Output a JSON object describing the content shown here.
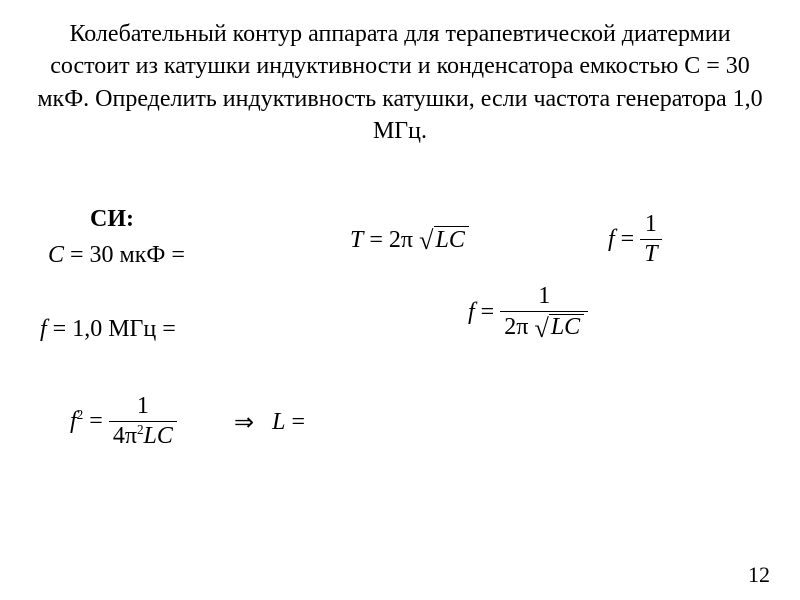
{
  "problem": "Колебательный контур аппарата для терапевтической диатермии состоит из катушки индуктивности и конденсатора емкостью С = 30 мкФ. Определить индуктивность катушки, если частота генератора 1,0 МГц.",
  "si_label": "СИ:",
  "given": {
    "C_lhs_var": "С",
    "C_lhs_eq": " = 30 мкФ = ",
    "f_lhs_var": "f",
    "f_lhs_eq": " = 1,0 МГц = "
  },
  "formulas": {
    "T": {
      "lhs": "T",
      "eq": " = 2π",
      "sqrt_content": "LC"
    },
    "f_inv_T": {
      "lhs": "f",
      "eq": " = ",
      "num": "1",
      "den": "T"
    },
    "f_full": {
      "lhs": "f",
      "eq": " = ",
      "num": "1",
      "den_prefix": "2π",
      "den_sqrt": "LC"
    },
    "f_sq": {
      "lhs": "f",
      "sup": "2",
      "eq": " = ",
      "num": "1",
      "den_a": "4π",
      "den_sup": "2",
      "den_b": "LC"
    },
    "implies": {
      "arrow": "⇒",
      "rhs_var": "L",
      "rhs_eq": " = "
    }
  },
  "page_number": "12",
  "style": {
    "background_color": "#ffffff",
    "text_color": "#000000",
    "font_family": "Times New Roman",
    "problem_fontsize": 24,
    "formula_fontsize": 24
  }
}
